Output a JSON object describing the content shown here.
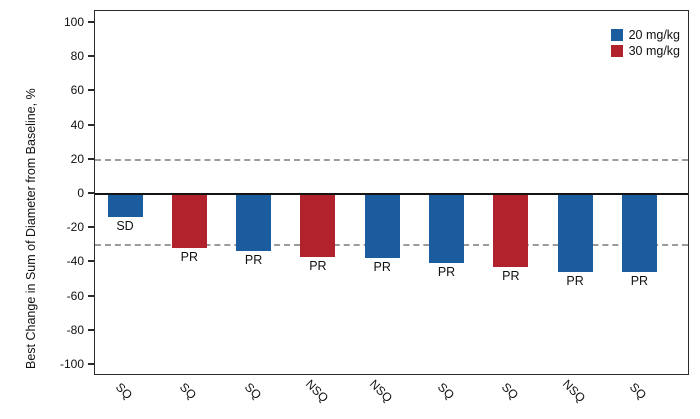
{
  "chart_data": {
    "type": "bar",
    "title": "",
    "xlabel": "",
    "ylabel": "Best Change in Sum of Diameter from Baseline, %",
    "ylim": [
      -100,
      100
    ],
    "yticks": [
      100,
      80,
      60,
      40,
      20,
      0,
      -20,
      -40,
      -60,
      -80,
      -100
    ],
    "grid": false,
    "reference_lines": [
      {
        "y": 20,
        "style": "dashed"
      },
      {
        "y": -30,
        "style": "dashed"
      }
    ],
    "categories": [
      "SQ",
      "SQ",
      "SQ",
      "NSQ",
      "NSQ",
      "SQ",
      "SQ",
      "NSQ",
      "SQ"
    ],
    "bars": [
      {
        "value": -13,
        "dose": "20 mg/kg",
        "response": "SD",
        "histology": "SQ"
      },
      {
        "value": -31,
        "dose": "30 mg/kg",
        "response": "PR",
        "histology": "SQ"
      },
      {
        "value": -33,
        "dose": "20 mg/kg",
        "response": "PR",
        "histology": "SQ"
      },
      {
        "value": -36,
        "dose": "30 mg/kg",
        "response": "PR",
        "histology": "NSQ"
      },
      {
        "value": -37,
        "dose": "20 mg/kg",
        "response": "PR",
        "histology": "NSQ"
      },
      {
        "value": -40,
        "dose": "20 mg/kg",
        "response": "PR",
        "histology": "SQ"
      },
      {
        "value": -42,
        "dose": "30 mg/kg",
        "response": "PR",
        "histology": "SQ"
      },
      {
        "value": -45,
        "dose": "20 mg/kg",
        "response": "PR",
        "histology": "NSQ"
      },
      {
        "value": -45,
        "dose": "20 mg/kg",
        "response": "PR",
        "histology": "SQ"
      }
    ],
    "legend": {
      "position": "top-right",
      "entries": [
        {
          "label": "20 mg/kg",
          "color": "#1a5c9e"
        },
        {
          "label": "30 mg/kg",
          "color": "#b2222d"
        }
      ]
    },
    "colors": {
      "blue_series": "#1a5c9e",
      "red_series": "#b2222d",
      "reference_line": "#9b9b9b",
      "axis": "#2b2b2b"
    }
  }
}
